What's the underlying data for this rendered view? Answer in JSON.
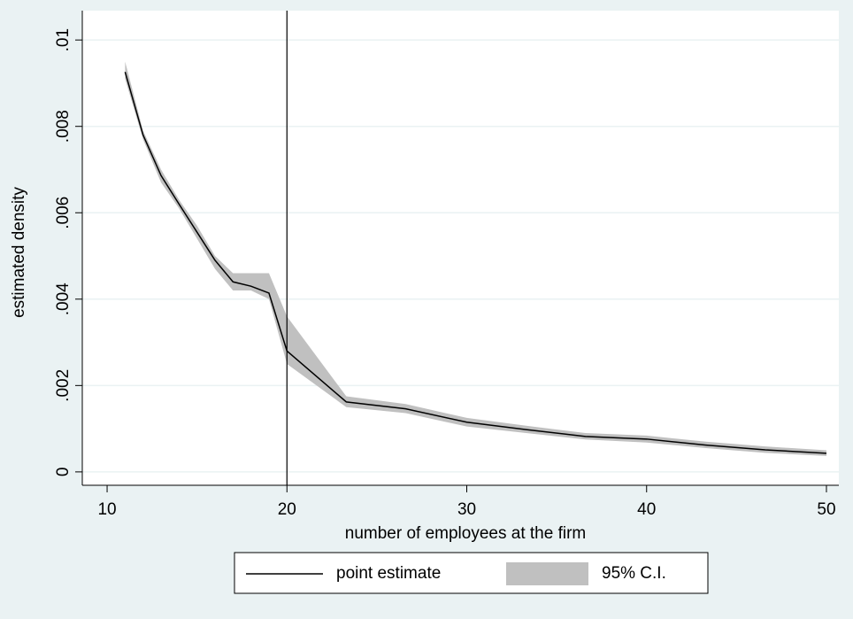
{
  "chart_data": {
    "type": "line",
    "xlabel": "number of employees at the firm",
    "ylabel": "estimated density",
    "x": [
      11,
      12,
      13,
      14,
      15,
      16,
      17,
      18,
      19,
      20,
      23.3,
      26.6,
      30,
      33.3,
      36.6,
      40,
      43.3,
      46.6,
      50
    ],
    "series": [
      {
        "name": "point estimate",
        "color": "#000000",
        "values": [
          0.00926,
          0.0078,
          0.00686,
          0.0062,
          0.00555,
          0.0049,
          0.0044,
          0.0043,
          0.00414,
          0.0028,
          0.00162,
          0.00146,
          0.00115,
          0.00098,
          0.00082,
          0.00076,
          0.00062,
          0.00051,
          0.00043
        ]
      },
      {
        "name": "95% C.I.",
        "color": "#c0c0c0",
        "upper": [
          0.0095,
          0.0079,
          0.007,
          0.0063,
          0.0057,
          0.005,
          0.0046,
          0.0046,
          0.0046,
          0.0036,
          0.00175,
          0.00157,
          0.00125,
          0.00107,
          0.0009,
          0.00084,
          0.0007,
          0.00059,
          0.0005
        ],
        "lower": [
          0.0091,
          0.0077,
          0.0067,
          0.0061,
          0.0054,
          0.0047,
          0.0042,
          0.0042,
          0.004,
          0.0025,
          0.0015,
          0.00136,
          0.00105,
          0.0009,
          0.00075,
          0.00068,
          0.00055,
          0.00044,
          0.00037
        ]
      }
    ],
    "vline": 20,
    "xlim": [
      8.62,
      50.69
    ],
    "ylim": [
      -0.00031,
      0.01068
    ],
    "xticks": [
      10,
      20,
      30,
      40,
      50
    ],
    "yticks": [
      0,
      {
        "value": 0.002,
        "label": ".002"
      },
      {
        "value": 0.004,
        "label": ".004"
      },
      {
        "value": 0.006,
        "label": ".006"
      },
      {
        "value": 0.008,
        "label": ".008"
      },
      {
        "value": 0.01,
        "label": ".01"
      }
    ],
    "grid": true
  }
}
